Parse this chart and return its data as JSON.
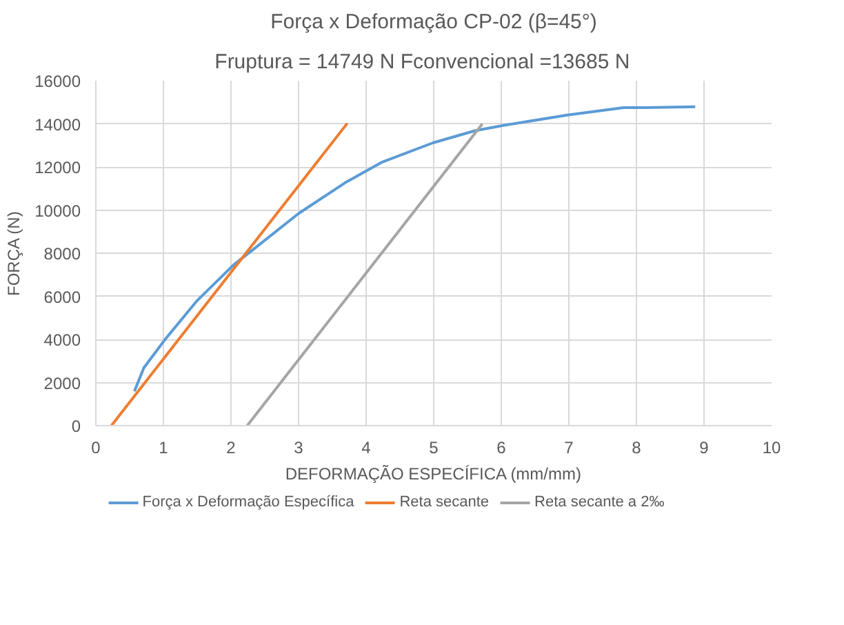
{
  "chart_data": {
    "type": "line",
    "title": "Força x Deformação CP-02 (β=45°)",
    "subtitle": "Fruptura = 14749 N     Fconvencional =13685 N",
    "xlabel": "DEFORMAÇÃO ESPECÍFICA (mm/mm)",
    "ylabel": "FORÇA (N)",
    "xlim": [
      0,
      10
    ],
    "xticks": [
      0,
      1,
      2,
      3,
      4,
      5,
      6,
      7,
      8,
      9,
      10
    ],
    "ylim": [
      0,
      16000
    ],
    "yticks": [
      0,
      2000,
      4000,
      6000,
      8000,
      10000,
      12000,
      14000,
      16000
    ],
    "grid": true,
    "legend": "bottom",
    "marker": "none",
    "line_style": "solid",
    "series": [
      {
        "name": "Força x Deformação Específica",
        "color": "#5b9bd5",
        "x": [
          0.57,
          0.71,
          1.02,
          1.49,
          2.04,
          2.32,
          3.0,
          3.69,
          4.24,
          4.99,
          5.61,
          6.02,
          6.98,
          7.81,
          8.15,
          8.87
        ],
        "values": [
          1590,
          2680,
          3980,
          5770,
          7460,
          8150,
          9840,
          11270,
          12230,
          13120,
          13680,
          13920,
          14410,
          14750,
          14750,
          14790
        ]
      },
      {
        "name": "Reta secante",
        "color": "#ed7d31",
        "x": [
          0.23,
          3.72
        ],
        "values": [
          0,
          14020
        ]
      },
      {
        "name": "Reta secante a 2‰",
        "color": "#a5a5a5",
        "x": [
          2.24,
          5.72
        ],
        "values": [
          0,
          14000
        ]
      }
    ]
  }
}
